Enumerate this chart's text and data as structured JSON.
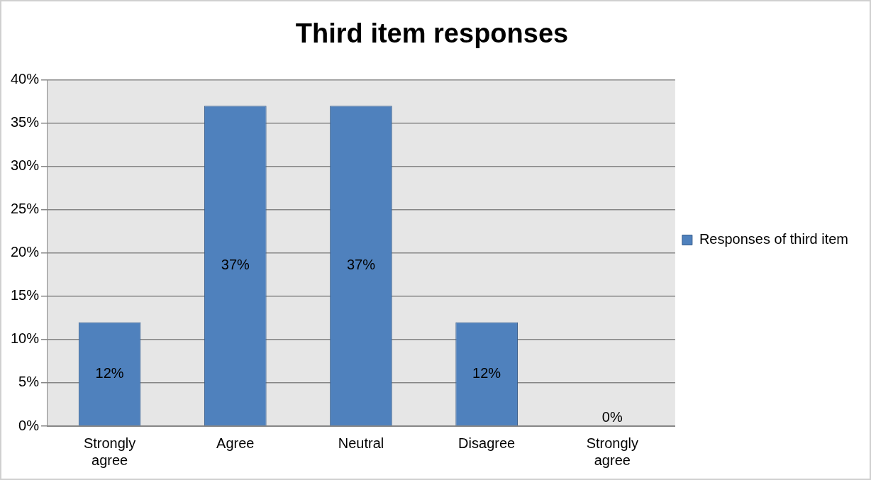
{
  "chart_data": {
    "type": "bar",
    "title": "Third item responses",
    "categories": [
      "Strongly agree",
      "Agree",
      "Neutral",
      "Disagree",
      "Strongly agree"
    ],
    "series": [
      {
        "name": "Responses of third item",
        "color": "#4f81bd",
        "values": [
          12,
          37,
          37,
          12,
          0
        ],
        "value_labels": [
          "12%",
          "37%",
          "37%",
          "12%",
          "0%"
        ]
      }
    ],
    "ylim": [
      0,
      40
    ],
    "yticks": [
      {
        "value": 0,
        "label": "0%"
      },
      {
        "value": 5,
        "label": "5%"
      },
      {
        "value": 10,
        "label": "10%"
      },
      {
        "value": 15,
        "label": "15%"
      },
      {
        "value": 20,
        "label": "20%"
      },
      {
        "value": 25,
        "label": "25%"
      },
      {
        "value": 30,
        "label": "30%"
      },
      {
        "value": 35,
        "label": "35%"
      },
      {
        "value": 40,
        "label": "40%"
      }
    ],
    "grid": "y",
    "legend": "right"
  }
}
